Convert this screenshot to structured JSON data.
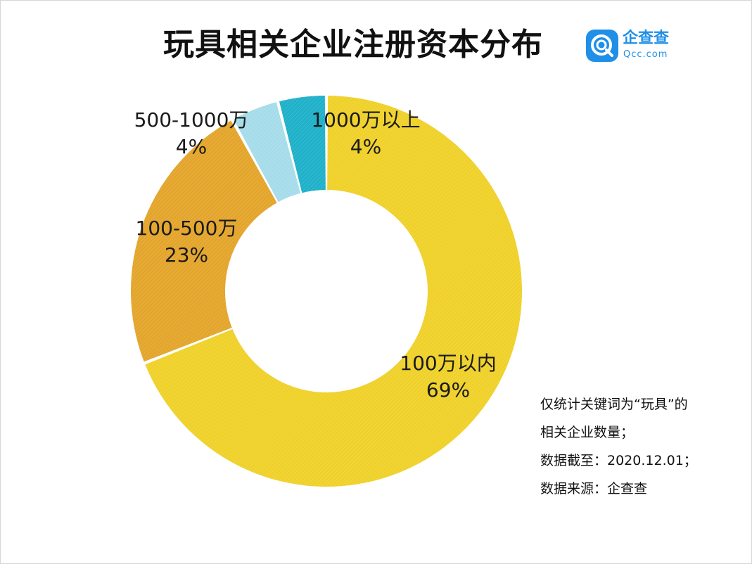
{
  "title": "玩具相关企业注册资本分布",
  "logo": {
    "name": "企查查",
    "domain": "Qcc.com",
    "brand_color": "#1f8fe8"
  },
  "notes": [
    "仅统计关键词为“玩具”的",
    "相关企业数量；",
    "数据截至：2020.12.01；",
    "数据来源：企查查"
  ],
  "chart_data": {
    "type": "pie",
    "style": "donut",
    "title": "玩具相关企业注册资本分布",
    "start": "12 o'clock, clockwise",
    "slices": [
      {
        "label": "100万以内",
        "value": 69,
        "value_text": "69%",
        "color": "#efd12a"
      },
      {
        "label": "100-500万",
        "value": 23,
        "value_text": "23%",
        "color": "#e3a52b"
      },
      {
        "label": "500-1000万",
        "value": 4,
        "value_text": "4%",
        "color": "#a6dcea"
      },
      {
        "label": "1000万以上",
        "value": 4,
        "value_text": "4%",
        "color": "#1fb1c9"
      }
    ]
  }
}
